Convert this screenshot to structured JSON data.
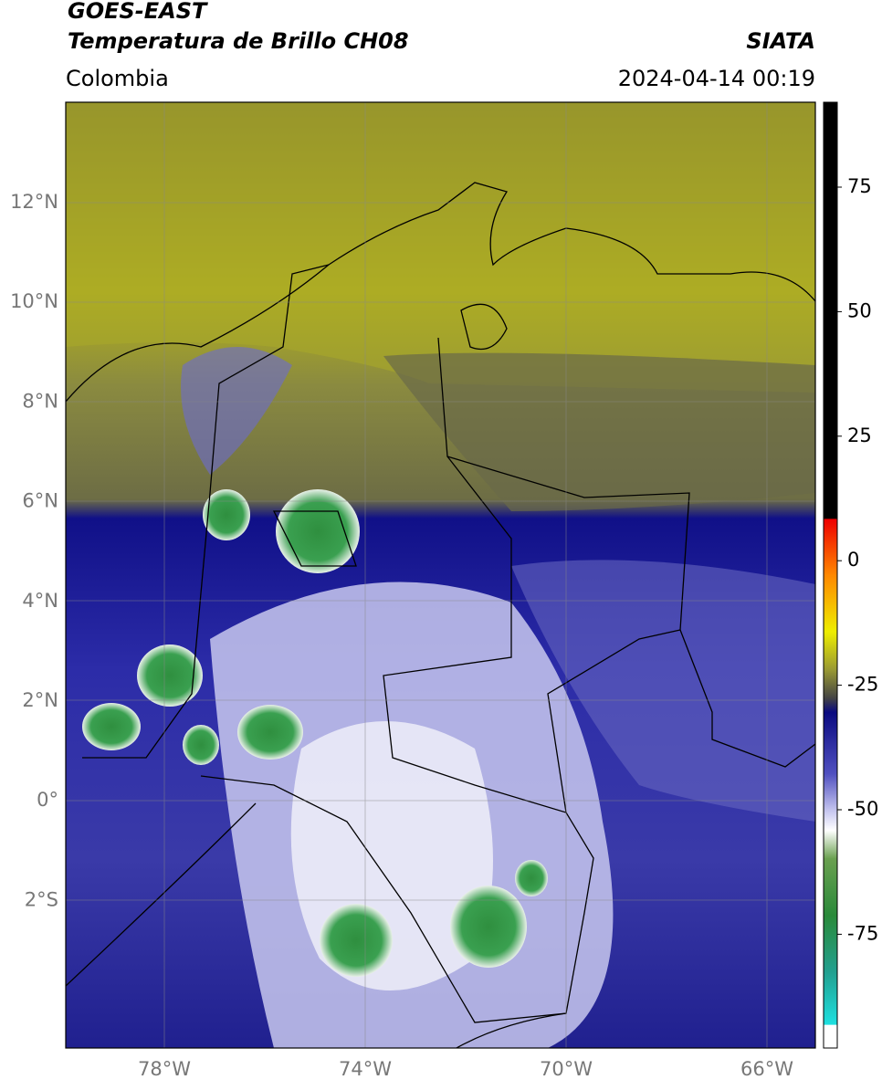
{
  "header": {
    "source": "GOES-EAST",
    "product": "Temperatura de Brillo CH08",
    "agency": "SIATA",
    "region": "Colombia",
    "datetime": "2024-04-14 00:19"
  },
  "map": {
    "lat_ticks": [
      "12°N",
      "10°N",
      "8°N",
      "6°N",
      "4°N",
      "2°N",
      "0°",
      "2°S"
    ],
    "lon_ticks": [
      "78°W",
      "74°W",
      "70°W",
      "66°W"
    ]
  },
  "colorbar": {
    "ticks": [
      75,
      50,
      25,
      0,
      -25,
      -50,
      -75
    ]
  }
}
